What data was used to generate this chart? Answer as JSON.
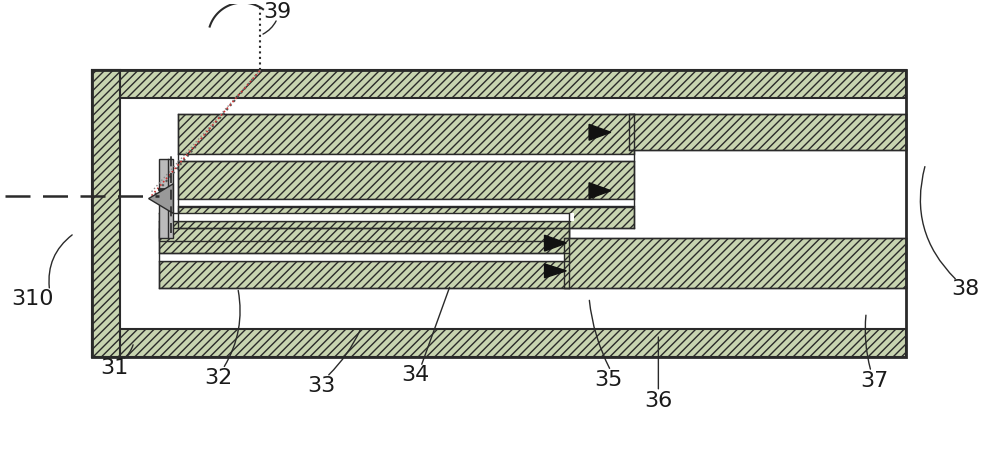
{
  "bg_color": "#ffffff",
  "hatch_fill": "#c8d4b0",
  "outline_color": "#2a2a2a",
  "label_color": "#1a1a1a",
  "label_fontsize": 16,
  "fig_w": 10.0,
  "fig_h": 4.52,
  "dpi": 100
}
